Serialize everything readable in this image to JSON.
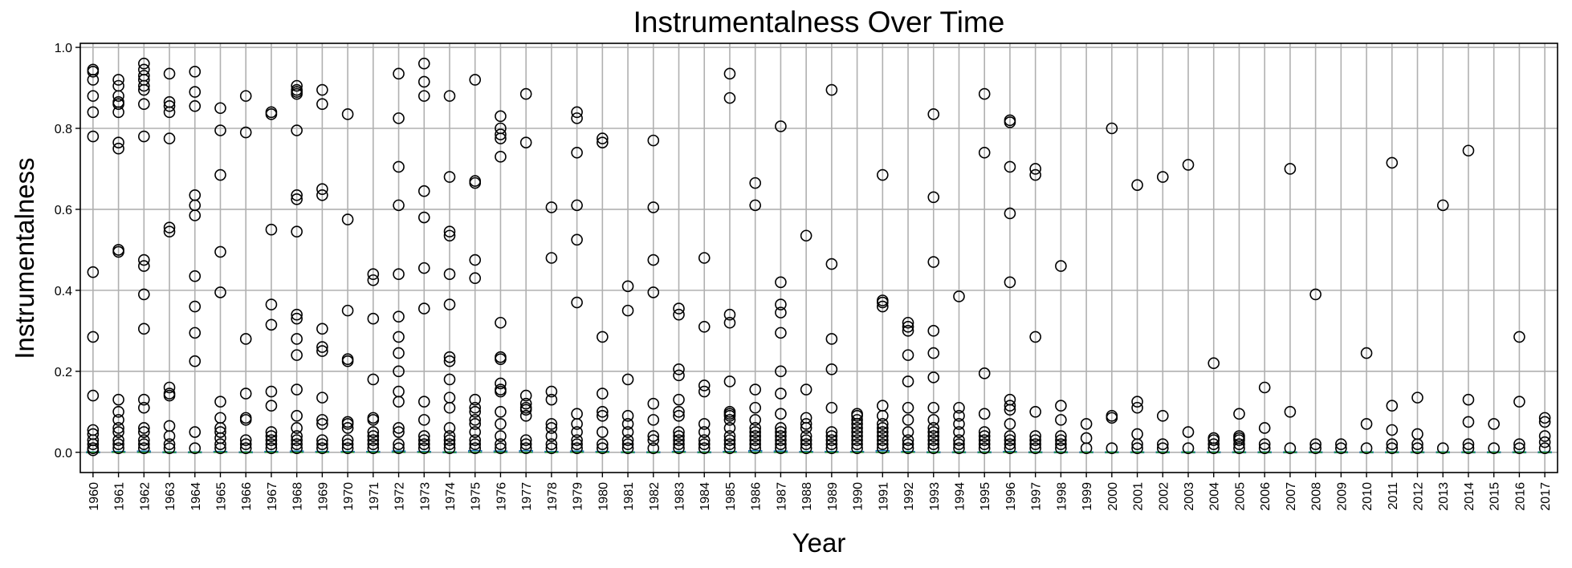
{
  "chart_data": {
    "type": "box",
    "title": "Instrumentalness Over Time",
    "xlabel": "Year",
    "ylabel": "Instrumentalness",
    "ylim": [
      -0.05,
      1.01
    ],
    "yticks": [
      0.0,
      0.2,
      0.4,
      0.6,
      0.8,
      1.0
    ],
    "ytick_labels": [
      "0.0",
      "0.2",
      "0.4",
      "0.6",
      "0.8",
      "1.0"
    ],
    "grid": true,
    "colors": {
      "outlier": "#000000",
      "box": "#1f77b4",
      "median": "#2ca02c",
      "grid": "#b0b0b0"
    },
    "categories": [
      "1960",
      "1961",
      "1962",
      "1963",
      "1964",
      "1965",
      "1966",
      "1967",
      "1968",
      "1969",
      "1970",
      "1971",
      "1972",
      "1973",
      "1974",
      "1975",
      "1976",
      "1977",
      "1978",
      "1979",
      "1980",
      "1981",
      "1982",
      "1983",
      "1984",
      "1985",
      "1986",
      "1987",
      "1988",
      "1989",
      "1990",
      "1991",
      "1992",
      "1993",
      "1994",
      "1995",
      "1996",
      "1997",
      "1998",
      "1999",
      "2000",
      "2001",
      "2002",
      "2003",
      "2004",
      "2005",
      "2006",
      "2007",
      "2008",
      "2009",
      "2010",
      "2011",
      "2012",
      "2013",
      "2014",
      "2015",
      "2016",
      "2017"
    ],
    "medians": [
      0,
      0,
      0,
      0,
      0,
      0,
      0,
      0,
      0,
      0,
      0,
      0,
      0,
      0,
      0,
      0,
      0,
      0,
      0,
      0,
      0,
      0,
      0,
      0,
      0,
      0,
      0,
      0,
      0,
      0,
      0,
      0,
      0,
      0,
      0,
      0,
      0,
      0,
      0,
      0,
      0,
      0,
      0,
      0,
      0,
      0,
      0,
      0,
      0,
      0,
      0,
      0,
      0,
      0,
      0,
      0,
      0,
      0
    ],
    "q3": [
      0.001,
      0.002,
      0.003,
      0.001,
      0.001,
      0.002,
      0.001,
      0.002,
      0.003,
      0.002,
      0.002,
      0.002,
      0.003,
      0.002,
      0.001,
      0.004,
      0.003,
      0.004,
      0.002,
      0.003,
      0.002,
      0.001,
      0.001,
      0.002,
      0.001,
      0.002,
      0.004,
      0.003,
      0.002,
      0.002,
      0.002,
      0.004,
      0.002,
      0.001,
      0.001,
      0.001,
      0.002,
      0.001,
      0.001,
      0.001,
      0.001,
      0.001,
      0.001,
      0.001,
      0.001,
      0.001,
      0.001,
      0.001,
      0.001,
      0.001,
      0.001,
      0.001,
      0.001,
      0.001,
      0.001,
      0.001,
      0.001,
      0.001
    ],
    "outliers": [
      [
        0.945,
        0.94,
        0.92,
        0.88,
        0.84,
        0.78,
        0.445,
        0.285,
        0.14,
        0.055,
        0.045,
        0.03,
        0.02,
        0.01,
        0.005
      ],
      [
        0.92,
        0.905,
        0.88,
        0.865,
        0.86,
        0.84,
        0.765,
        0.75,
        0.5,
        0.495,
        0.13,
        0.1,
        0.08,
        0.06,
        0.05,
        0.03,
        0.02,
        0.01
      ],
      [
        0.96,
        0.945,
        0.93,
        0.92,
        0.905,
        0.895,
        0.86,
        0.78,
        0.475,
        0.46,
        0.39,
        0.305,
        0.13,
        0.11,
        0.06,
        0.05,
        0.03,
        0.02,
        0.01
      ],
      [
        0.935,
        0.865,
        0.855,
        0.84,
        0.775,
        0.555,
        0.545,
        0.16,
        0.145,
        0.14,
        0.065,
        0.04,
        0.02,
        0.01
      ],
      [
        0.94,
        0.89,
        0.855,
        0.635,
        0.61,
        0.585,
        0.435,
        0.36,
        0.295,
        0.225,
        0.05,
        0.01
      ],
      [
        0.85,
        0.795,
        0.685,
        0.495,
        0.395,
        0.125,
        0.085,
        0.06,
        0.05,
        0.035,
        0.02,
        0.01
      ],
      [
        0.88,
        0.79,
        0.28,
        0.145,
        0.085,
        0.08,
        0.03,
        0.02,
        0.01
      ],
      [
        0.84,
        0.835,
        0.55,
        0.365,
        0.315,
        0.15,
        0.115,
        0.05,
        0.04,
        0.03,
        0.02,
        0.01
      ],
      [
        0.905,
        0.895,
        0.89,
        0.885,
        0.795,
        0.635,
        0.625,
        0.545,
        0.34,
        0.33,
        0.28,
        0.24,
        0.155,
        0.09,
        0.06,
        0.04,
        0.03,
        0.02,
        0.01
      ],
      [
        0.895,
        0.86,
        0.65,
        0.635,
        0.305,
        0.26,
        0.25,
        0.135,
        0.08,
        0.07,
        0.03,
        0.02,
        0.01
      ],
      [
        0.835,
        0.575,
        0.35,
        0.23,
        0.225,
        0.075,
        0.07,
        0.06,
        0.03,
        0.02,
        0.01
      ],
      [
        0.44,
        0.425,
        0.33,
        0.18,
        0.085,
        0.08,
        0.05,
        0.04,
        0.03,
        0.02,
        0.01
      ],
      [
        0.935,
        0.825,
        0.705,
        0.61,
        0.44,
        0.335,
        0.285,
        0.245,
        0.2,
        0.15,
        0.125,
        0.06,
        0.05,
        0.02,
        0.01
      ],
      [
        0.96,
        0.915,
        0.88,
        0.645,
        0.58,
        0.455,
        0.355,
        0.125,
        0.08,
        0.04,
        0.03,
        0.02,
        0.01
      ],
      [
        0.88,
        0.68,
        0.545,
        0.535,
        0.44,
        0.365,
        0.235,
        0.225,
        0.18,
        0.135,
        0.11,
        0.06,
        0.04,
        0.03,
        0.02,
        0.01
      ],
      [
        0.92,
        0.67,
        0.665,
        0.475,
        0.43,
        0.13,
        0.11,
        0.1,
        0.08,
        0.07,
        0.05,
        0.03,
        0.02,
        0.01
      ],
      [
        0.83,
        0.8,
        0.785,
        0.775,
        0.73,
        0.32,
        0.235,
        0.23,
        0.17,
        0.155,
        0.15,
        0.1,
        0.07,
        0.04,
        0.02,
        0.01
      ],
      [
        0.885,
        0.765,
        0.14,
        0.12,
        0.11,
        0.105,
        0.09,
        0.03,
        0.02,
        0.01
      ],
      [
        0.605,
        0.48,
        0.15,
        0.13,
        0.07,
        0.06,
        0.04,
        0.02,
        0.01
      ],
      [
        0.84,
        0.825,
        0.74,
        0.61,
        0.525,
        0.37,
        0.095,
        0.07,
        0.05,
        0.03,
        0.02,
        0.01
      ],
      [
        0.775,
        0.765,
        0.285,
        0.145,
        0.1,
        0.09,
        0.05,
        0.02,
        0.01
      ],
      [
        0.41,
        0.35,
        0.18,
        0.09,
        0.07,
        0.05,
        0.03,
        0.02,
        0.01
      ],
      [
        0.77,
        0.605,
        0.475,
        0.395,
        0.12,
        0.08,
        0.04,
        0.03,
        0.01
      ],
      [
        0.355,
        0.34,
        0.205,
        0.19,
        0.13,
        0.1,
        0.09,
        0.05,
        0.04,
        0.03,
        0.02,
        0.01
      ],
      [
        0.48,
        0.31,
        0.165,
        0.15,
        0.07,
        0.05,
        0.03,
        0.02,
        0.01
      ],
      [
        0.935,
        0.875,
        0.34,
        0.32,
        0.175,
        0.1,
        0.095,
        0.09,
        0.08,
        0.06,
        0.04,
        0.03,
        0.02,
        0.01
      ],
      [
        0.665,
        0.61,
        0.155,
        0.11,
        0.08,
        0.06,
        0.05,
        0.04,
        0.03,
        0.02,
        0.01
      ],
      [
        0.805,
        0.42,
        0.365,
        0.345,
        0.295,
        0.2,
        0.145,
        0.095,
        0.06,
        0.05,
        0.04,
        0.03,
        0.02,
        0.01
      ],
      [
        0.535,
        0.155,
        0.085,
        0.07,
        0.06,
        0.04,
        0.03,
        0.02,
        0.01
      ],
      [
        0.895,
        0.465,
        0.28,
        0.205,
        0.11,
        0.05,
        0.04,
        0.03,
        0.02,
        0.01
      ],
      [
        0.095,
        0.09,
        0.08,
        0.07,
        0.06,
        0.05,
        0.04,
        0.03,
        0.02,
        0.01
      ],
      [
        0.685,
        0.375,
        0.37,
        0.36,
        0.115,
        0.09,
        0.07,
        0.06,
        0.05,
        0.04,
        0.03,
        0.02,
        0.01
      ],
      [
        0.32,
        0.31,
        0.3,
        0.24,
        0.175,
        0.11,
        0.08,
        0.05,
        0.03,
        0.02,
        0.01
      ],
      [
        0.835,
        0.63,
        0.47,
        0.3,
        0.245,
        0.185,
        0.11,
        0.08,
        0.06,
        0.05,
        0.04,
        0.03,
        0.02,
        0.01
      ],
      [
        0.385,
        0.11,
        0.09,
        0.07,
        0.05,
        0.03,
        0.02,
        0.01
      ],
      [
        0.885,
        0.74,
        0.195,
        0.095,
        0.05,
        0.04,
        0.03,
        0.02,
        0.01
      ],
      [
        0.82,
        0.815,
        0.705,
        0.59,
        0.42,
        0.13,
        0.115,
        0.105,
        0.07,
        0.04,
        0.03,
        0.02,
        0.01
      ],
      [
        0.7,
        0.685,
        0.285,
        0.1,
        0.04,
        0.03,
        0.02,
        0.01
      ],
      [
        0.46,
        0.115,
        0.08,
        0.04,
        0.03,
        0.02,
        0.01
      ],
      [
        0.07,
        0.035,
        0.01
      ],
      [
        0.8,
        0.09,
        0.085,
        0.01
      ],
      [
        0.66,
        0.125,
        0.11,
        0.045,
        0.02,
        0.01
      ],
      [
        0.68,
        0.09,
        0.02,
        0.01
      ],
      [
        0.71,
        0.05,
        0.01
      ],
      [
        0.22,
        0.035,
        0.03,
        0.02,
        0.01
      ],
      [
        0.095,
        0.04,
        0.035,
        0.03,
        0.02,
        0.01
      ],
      [
        0.16,
        0.06,
        0.02,
        0.01
      ],
      [
        0.7,
        0.1,
        0.01
      ],
      [
        0.39,
        0.02,
        0.01
      ],
      [
        0.02,
        0.01
      ],
      [
        0.245,
        0.07,
        0.01
      ],
      [
        0.715,
        0.115,
        0.055,
        0.02,
        0.01
      ],
      [
        0.135,
        0.045,
        0.02,
        0.01
      ],
      [
        0.61,
        0.01
      ],
      [
        0.745,
        0.13,
        0.075,
        0.02,
        0.01
      ],
      [
        0.07,
        0.01
      ],
      [
        0.285,
        0.125,
        0.02,
        0.01
      ],
      [
        0.085,
        0.075,
        0.04,
        0.025,
        0.01
      ]
    ]
  }
}
